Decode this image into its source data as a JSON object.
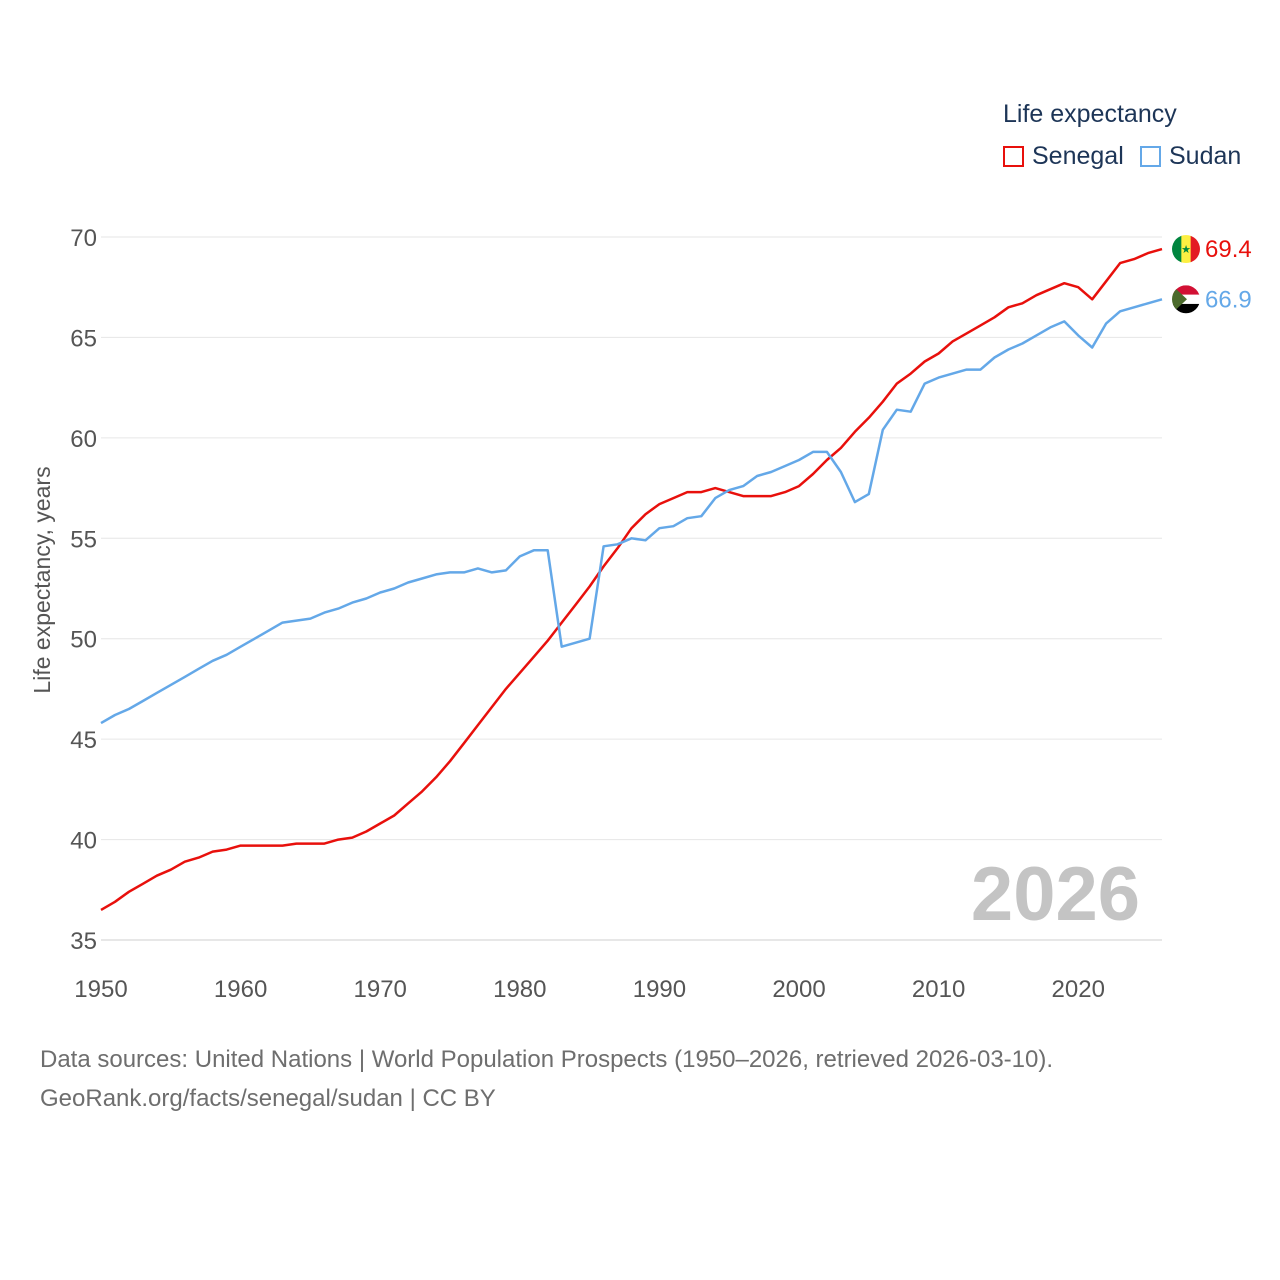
{
  "legend": {
    "title": "Life expectancy",
    "items": [
      {
        "label": "Senegal",
        "color": "#e8100c"
      },
      {
        "label": "Sudan",
        "color": "#64a8e8"
      }
    ]
  },
  "source": {
    "line1": "Data sources: United Nations | World Population Prospects (1950–2026, retrieved 2026-03-10).",
    "line2": "GeoRank.org/facts/senegal/sudan | CC BY"
  },
  "chart_data": {
    "type": "line",
    "title": "Life expectancy",
    "xlabel": "",
    "ylabel": "Life expectancy, years",
    "xlim": [
      1950,
      2026
    ],
    "ylim": [
      35,
      71
    ],
    "x_ticks": [
      1950,
      1960,
      1970,
      1980,
      1990,
      2000,
      2010,
      2020
    ],
    "y_ticks": [
      35,
      40,
      45,
      50,
      55,
      60,
      65,
      70
    ],
    "grid": true,
    "legend_position": "top-right",
    "year_label": "2026",
    "x": [
      1950,
      1951,
      1952,
      1953,
      1954,
      1955,
      1956,
      1957,
      1958,
      1959,
      1960,
      1961,
      1962,
      1963,
      1964,
      1965,
      1966,
      1967,
      1968,
      1969,
      1970,
      1971,
      1972,
      1973,
      1974,
      1975,
      1976,
      1977,
      1978,
      1979,
      1980,
      1981,
      1982,
      1983,
      1984,
      1985,
      1986,
      1987,
      1988,
      1989,
      1990,
      1991,
      1992,
      1993,
      1994,
      1995,
      1996,
      1997,
      1998,
      1999,
      2000,
      2001,
      2002,
      2003,
      2004,
      2005,
      2006,
      2007,
      2008,
      2009,
      2010,
      2011,
      2012,
      2013,
      2014,
      2015,
      2016,
      2017,
      2018,
      2019,
      2020,
      2021,
      2022,
      2023,
      2024,
      2025,
      2026
    ],
    "series": [
      {
        "name": "Senegal",
        "color": "#e8100c",
        "end_label": "69.4",
        "values": [
          36.5,
          36.9,
          37.4,
          37.8,
          38.2,
          38.5,
          38.9,
          39.1,
          39.4,
          39.5,
          39.7,
          39.7,
          39.7,
          39.7,
          39.8,
          39.8,
          39.8,
          40.0,
          40.1,
          40.4,
          40.8,
          41.2,
          41.8,
          42.4,
          43.1,
          43.9,
          44.8,
          45.7,
          46.6,
          47.5,
          48.3,
          49.1,
          49.9,
          50.8,
          51.7,
          52.6,
          53.6,
          54.5,
          55.5,
          56.2,
          56.7,
          57.0,
          57.3,
          57.3,
          57.5,
          57.3,
          57.1,
          57.1,
          57.1,
          57.3,
          57.6,
          58.2,
          58.9,
          59.5,
          60.3,
          61.0,
          61.8,
          62.7,
          63.2,
          63.8,
          64.2,
          64.8,
          65.2,
          65.6,
          66.0,
          66.5,
          66.7,
          67.1,
          67.4,
          67.7,
          67.5,
          66.9,
          67.8,
          68.7,
          68.9,
          69.2,
          69.4
        ]
      },
      {
        "name": "Sudan",
        "color": "#64a8e8",
        "end_label": "66.9",
        "values": [
          45.8,
          46.2,
          46.5,
          46.9,
          47.3,
          47.7,
          48.1,
          48.5,
          48.9,
          49.2,
          49.6,
          50.0,
          50.4,
          50.8,
          50.9,
          51.0,
          51.3,
          51.5,
          51.8,
          52.0,
          52.3,
          52.5,
          52.8,
          53.0,
          53.2,
          53.3,
          53.3,
          53.5,
          53.3,
          53.4,
          54.1,
          54.4,
          54.4,
          49.6,
          49.8,
          50.0,
          54.6,
          54.7,
          55.0,
          54.9,
          55.5,
          55.6,
          56.0,
          56.1,
          57.0,
          57.4,
          57.6,
          58.1,
          58.3,
          58.6,
          58.9,
          59.3,
          59.3,
          58.3,
          56.8,
          57.2,
          60.4,
          61.4,
          61.3,
          62.7,
          63.0,
          63.2,
          63.4,
          63.4,
          64.0,
          64.4,
          64.7,
          65.1,
          65.5,
          65.8,
          65.1,
          64.5,
          65.7,
          66.3,
          66.5,
          66.7,
          66.9
        ]
      }
    ]
  }
}
